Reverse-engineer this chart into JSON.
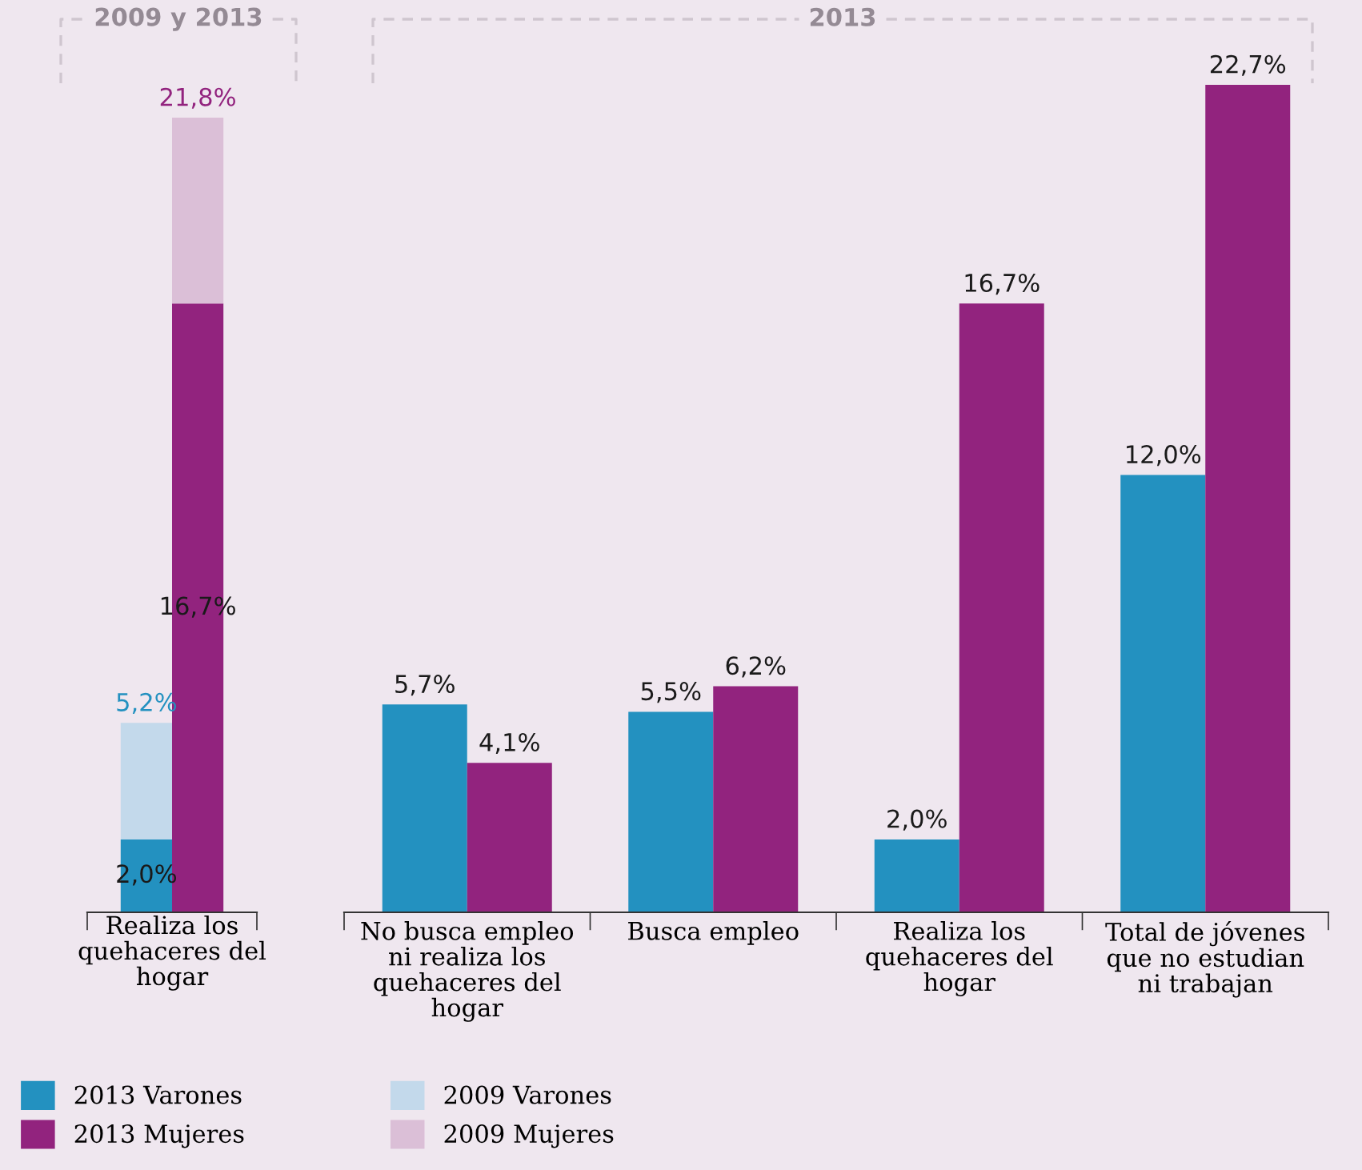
{
  "chart_data": [
    {
      "type": "bar",
      "title": "2009 y 2013",
      "xlabel": "Realiza los quehaceres del hogar",
      "categories": [
        null,
        null
      ],
      "legend": "bottom",
      "stacked": true,
      "totals": [
        "5,2%",
        "21,8%"
      ],
      "series": [
        {
          "name": "2013 Varones",
          "color": "#2391c0",
          "values": [
            2.0,
            null
          ],
          "value_labels": [
            "2,0%",
            null
          ]
        },
        {
          "name": "2013 Mujeres",
          "color": "#92237e",
          "values": [
            null,
            16.7
          ],
          "value_labels": [
            null,
            "16,7%"
          ]
        },
        {
          "name": "2009 Varones",
          "color": "#c3d9eb",
          "values": [
            3.2,
            null
          ]
        },
        {
          "name": "2009 Mujeres",
          "color": "#dbbfd7",
          "values": [
            null,
            5.1
          ]
        }
      ]
    },
    {
      "type": "bar",
      "title": "2013",
      "categories": [
        "No busca empleo ni realiza los quehaceres del hogar",
        "Busca empleo",
        "Realiza los quehaceres del hogar",
        "Total de jóvenes que no estudian ni trabajan"
      ],
      "series": [
        {
          "color": "#2391c0",
          "values": [
            5.7,
            5.5,
            2.0,
            12.0
          ],
          "value_labels": [
            "5,7%",
            "5,5%",
            "2,0%",
            "12,0%"
          ]
        },
        {
          "color": "#92237e",
          "values": [
            4.1,
            6.2,
            16.7,
            22.7
          ],
          "value_labels": [
            "4,1%",
            "6,2%",
            "16,7%",
            "22,7%"
          ]
        }
      ]
    }
  ]
}
